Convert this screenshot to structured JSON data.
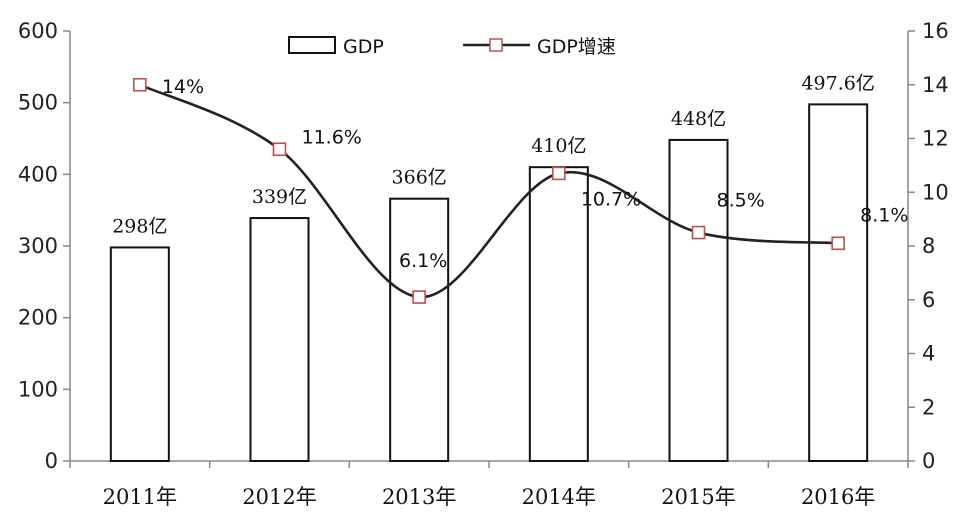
{
  "chart_data": {
    "type": "bar",
    "categories": [
      "2011年",
      "2012年",
      "2013年",
      "2014年",
      "2015年",
      "2016年"
    ],
    "series": [
      {
        "name": "GDP",
        "type": "bar",
        "axis": "left",
        "values": [
          298,
          339,
          366,
          410,
          448,
          497.6
        ],
        "labels": [
          "298亿",
          "339亿",
          "366亿",
          "410亿",
          "448亿",
          "497.6亿"
        ]
      },
      {
        "name": "GDP增速",
        "type": "line",
        "axis": "right",
        "values": [
          14,
          11.6,
          6.1,
          10.7,
          8.5,
          8.1
        ],
        "labels": [
          "14%",
          "11.6%",
          "6.1%",
          "10.7%",
          "8.5%",
          "8.1%"
        ],
        "marker_color": "#c0504d"
      }
    ],
    "left_axis": {
      "ylim": [
        0,
        600
      ],
      "ticks": [
        "0",
        "100",
        "200",
        "300",
        "400",
        "500",
        "600"
      ]
    },
    "right_axis": {
      "ylim": [
        0,
        16
      ],
      "ticks": [
        "0",
        "2",
        "4",
        "6",
        "8",
        "10",
        "12",
        "14",
        "16"
      ]
    },
    "legend": {
      "placement": "top-center",
      "items": [
        "GDP",
        "GDP增速"
      ]
    },
    "grid": false,
    "title": "",
    "xlabel": "",
    "ylabel": ""
  }
}
